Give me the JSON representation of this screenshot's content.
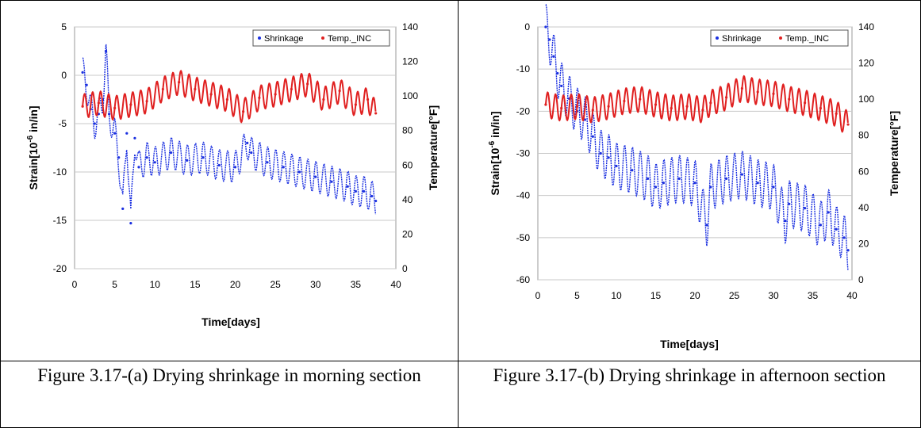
{
  "chart_data": [
    {
      "type": "scatter",
      "xlabel": "Time[days]",
      "ylabel": "Strain[10-6 in/in]",
      "y2label": "Temperature[°F]",
      "xlim": [
        0,
        40
      ],
      "ylim": [
        -20,
        5
      ],
      "y2lim": [
        0,
        140
      ],
      "xticks": [
        0,
        5,
        10,
        15,
        20,
        25,
        30,
        35,
        40
      ],
      "yticks": [
        5,
        0,
        -5,
        -10,
        -15,
        -20
      ],
      "y2ticks": [
        140,
        120,
        100,
        80,
        60,
        40,
        20,
        0
      ],
      "grid": true,
      "legend_position": "top-right",
      "series": [
        {
          "name": "Shrinkage",
          "axis": "left",
          "color": "#1a2fe0",
          "x": [
            1,
            1.5,
            2,
            2.5,
            3,
            3.5,
            3.9,
            4.3,
            5,
            5.5,
            6,
            6.5,
            7,
            7.5,
            8,
            9,
            10,
            12,
            14,
            16,
            18,
            20,
            21.5,
            22,
            24,
            26,
            28,
            30,
            32,
            34,
            35,
            36,
            37,
            37.5
          ],
          "y": [
            0.3,
            -1,
            -3.5,
            -5,
            -4,
            -2.5,
            2.5,
            -4,
            -6,
            -8.5,
            -13.8,
            -6,
            -15.3,
            -6.5,
            -9.5,
            -8.5,
            -9,
            -8,
            -8.8,
            -8.5,
            -9.3,
            -9.5,
            -7,
            -8,
            -9,
            -9.5,
            -10,
            -10.5,
            -11,
            -11.5,
            -12,
            -12,
            -12.5,
            -13
          ]
        },
        {
          "name": "Temp._INC",
          "axis": "right",
          "color": "#e02020",
          "x": [
            1,
            3,
            5,
            7,
            9,
            11,
            13,
            15,
            17,
            19,
            21,
            23,
            25,
            27,
            29,
            31,
            33,
            35,
            36.5,
            37.5
          ],
          "y": [
            94,
            96,
            93,
            95,
            97,
            104,
            108,
            104,
            101,
            98,
            91,
            99,
            101,
            104,
            107,
            98,
            103,
            95,
            98,
            90
          ]
        }
      ]
    },
    {
      "type": "scatter",
      "xlabel": "Time[days]",
      "ylabel": "Strain[10-6 in/in]",
      "y2label": "Temperature[°F]",
      "xlim": [
        0,
        40
      ],
      "ylim": [
        -60,
        0
      ],
      "y2lim": [
        0,
        140
      ],
      "xticks": [
        0,
        5,
        10,
        15,
        20,
        25,
        30,
        35,
        40
      ],
      "yticks": [
        0,
        -10,
        -20,
        -30,
        -40,
        -50,
        -60
      ],
      "y2ticks": [
        140,
        120,
        100,
        80,
        60,
        40,
        20,
        0
      ],
      "grid": true,
      "legend_position": "top-right",
      "series": [
        {
          "name": "Shrinkage",
          "axis": "left",
          "color": "#1a2fe0",
          "x": [
            1,
            1.5,
            2,
            2.5,
            3,
            4,
            5,
            6,
            7,
            8,
            9,
            10,
            12,
            14,
            15,
            16,
            18,
            20,
            21.5,
            22,
            24,
            26,
            28,
            30,
            31.5,
            32,
            34,
            36,
            37,
            38,
            39,
            39.5
          ],
          "y": [
            0,
            -3,
            -7,
            -11,
            -14,
            -17,
            -20,
            -22,
            -26,
            -30,
            -31,
            -33,
            -34,
            -36,
            -38,
            -37,
            -36,
            -37,
            -47,
            -38,
            -36,
            -35,
            -37,
            -38,
            -46,
            -42,
            -43,
            -47,
            -44,
            -48,
            -50,
            -53
          ]
        },
        {
          "name": "Temp._INC",
          "axis": "right",
          "color": "#e02020",
          "x": [
            1,
            3,
            5,
            7,
            9,
            11,
            13,
            15,
            17,
            19,
            21,
            22,
            24,
            26,
            28,
            30,
            32,
            34,
            36,
            38,
            39.5
          ],
          "y": [
            97,
            95,
            96,
            94,
            96,
            99,
            100,
            97,
            95,
            96,
            94,
            98,
            101,
            106,
            104,
            103,
            100,
            98,
            95,
            92,
            86
          ]
        }
      ]
    }
  ],
  "captions": [
    "Figure 3.17-(a) Drying shrinkage in morning section",
    "Figure 3.17-(b) Drying shrinkage in afternoon section"
  ]
}
